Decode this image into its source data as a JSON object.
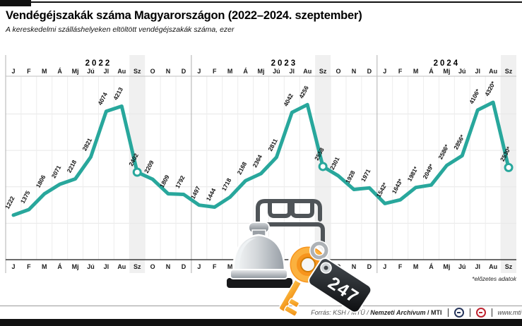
{
  "title": "Vendégéjszakák száma Magyarországon (2022–2024. szeptember)",
  "subtitle": "A kereskedelmi szálláshelyeken eltöltött vendégéjszakák száma, ezer",
  "footnote": "*előzetes adatok",
  "footer": {
    "source_prefix": "Forrás: KSH / MTÜ /",
    "source_bold": "Nemzeti Archívum",
    "source_suffix": "/ MTI",
    "url": "www.mti"
  },
  "decorations": {
    "tag_text": "247",
    "icons": [
      "bed-icon",
      "reception-bell-icon",
      "key-icon",
      "keyring-icon",
      "price-tag-icon"
    ]
  },
  "chart_data": {
    "type": "line",
    "title": "Vendégéjszakák száma Magyarországon (2022–2024. szeptember)",
    "ylabel": "vendégéjszakák száma, ezer",
    "ylim": [
      0,
      4600
    ],
    "grid": true,
    "legend": "none",
    "line_color": "#28a79c",
    "highlight_band_color": "#f0f0f0",
    "highlight_month": "Sz",
    "month_labels": [
      "J",
      "F",
      "M",
      "Á",
      "Mj",
      "Jú",
      "Jl",
      "Au",
      "Sz",
      "O",
      "N",
      "D"
    ],
    "series": [
      {
        "name": "2022",
        "preliminary": false,
        "values": [
          1222,
          1375,
          1806,
          2071,
          2218,
          2821,
          4074,
          4213,
          2402,
          2209,
          1809,
          1792
        ]
      },
      {
        "name": "2023",
        "preliminary": false,
        "values": [
          1497,
          1444,
          1718,
          2168,
          2364,
          2811,
          4042,
          4256,
          2558,
          2301,
          1928,
          1971
        ]
      },
      {
        "name": "2024",
        "preliminary": true,
        "values": [
          1542,
          1643,
          1981,
          2049,
          2586,
          2856,
          4106,
          4320,
          2530
        ]
      }
    ]
  }
}
